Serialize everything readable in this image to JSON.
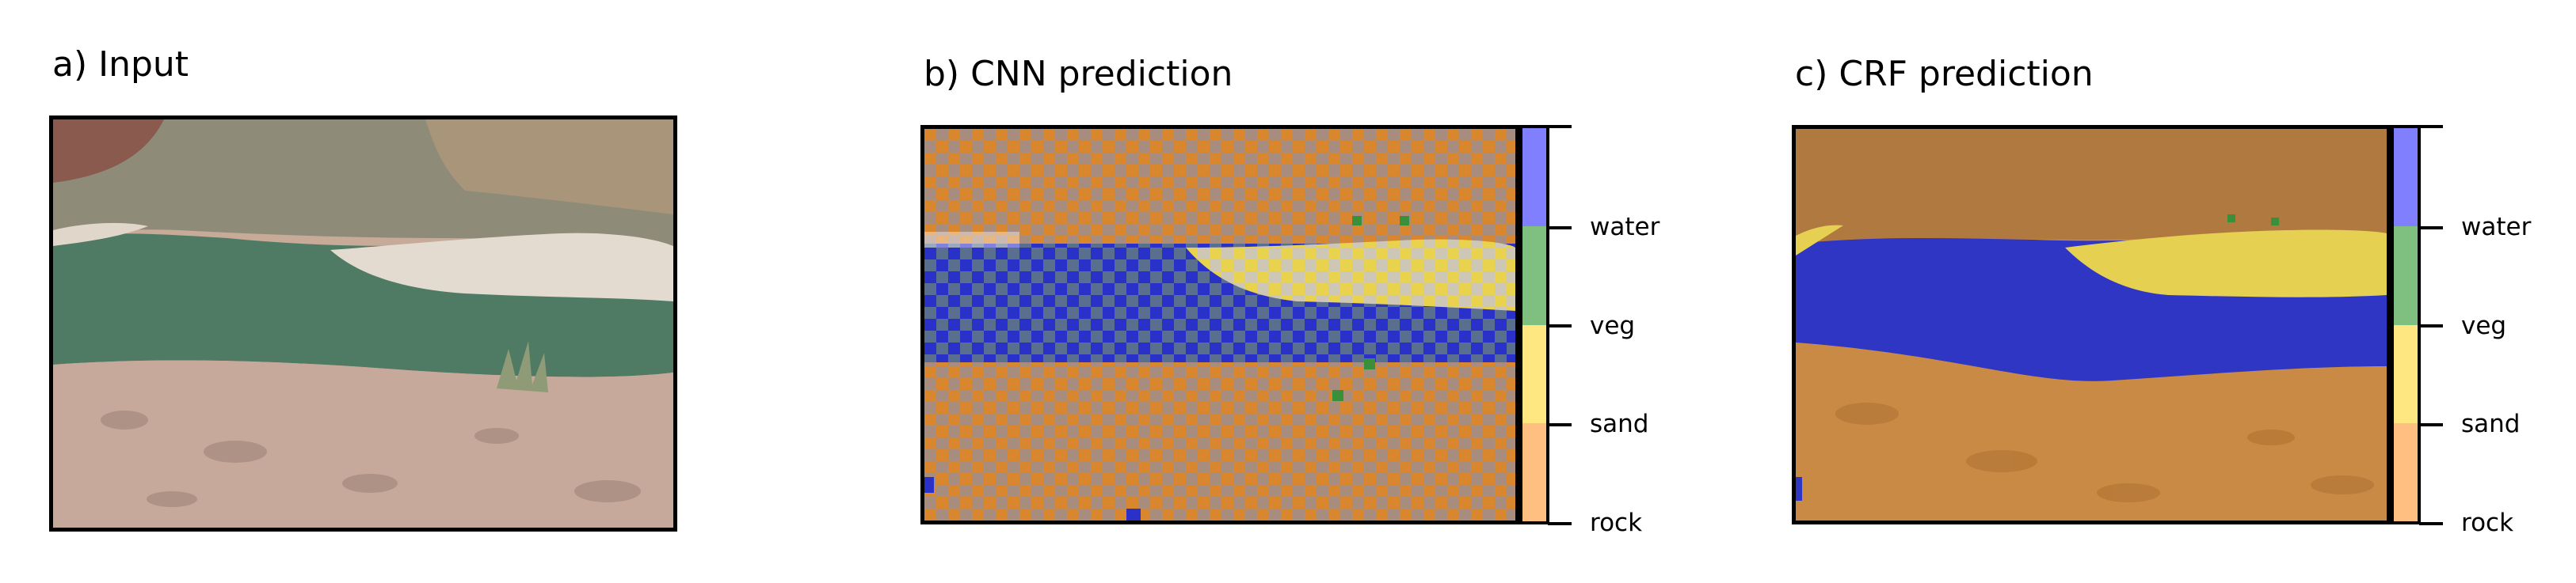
{
  "panels": {
    "a": {
      "title": "a) Input"
    },
    "b": {
      "title": "b) CNN prediction"
    },
    "c": {
      "title": "c) CRF prediction"
    }
  },
  "colorbar": {
    "labels": [
      "water",
      "veg",
      "sand",
      "rock"
    ],
    "colors": {
      "water": "#8080ff",
      "veg": "#7fbf7f",
      "sand": "#fee680",
      "rock": "#ffbf80"
    }
  },
  "scene_colors": {
    "cliff": "#8f8a78",
    "water": "#4f7b65",
    "sand": "#e6ddd2",
    "rocks": "#c5a99a",
    "overlay_rock": "#d9872e",
    "overlay_water": "#2a31c9",
    "overlay_sand": "#e8d24e",
    "overlay_veg": "#3a8f3a"
  }
}
